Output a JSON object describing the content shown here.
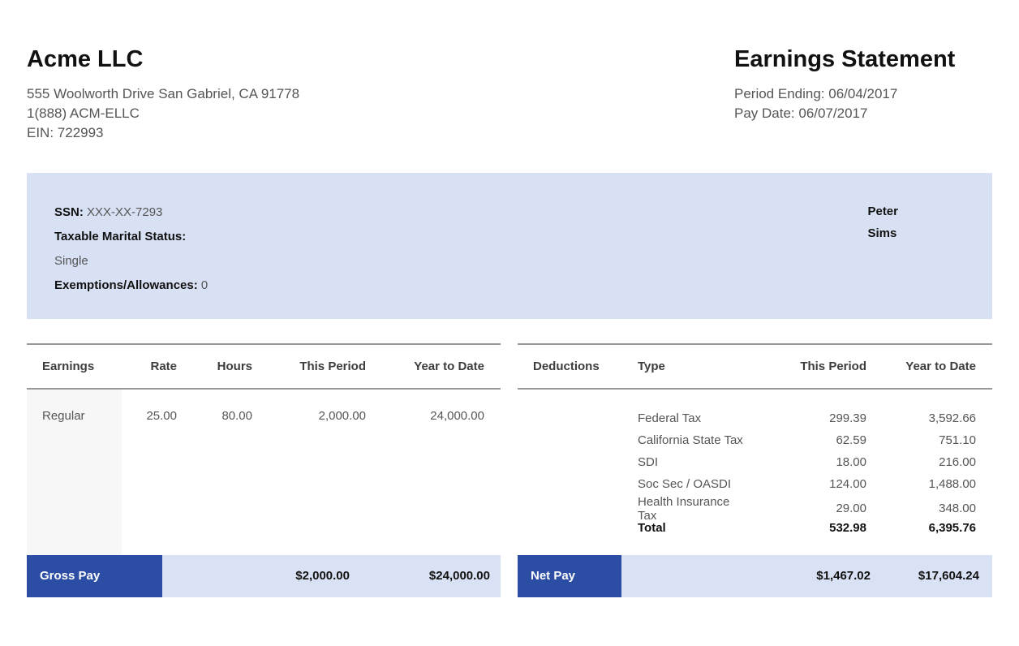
{
  "company": {
    "name": "Acme LLC",
    "address": "555 Woolworth Drive San Gabriel, CA 91778",
    "phone": "1(888) ACM-ELLC",
    "ein": "EIN: 722993"
  },
  "statement": {
    "title": "Earnings Statement",
    "period_ending": "Period Ending: 06/04/2017",
    "pay_date": "Pay Date: 06/07/2017"
  },
  "employee": {
    "ssn_label": "SSN:",
    "ssn_value": "XXX-XX-7293",
    "marital_label": "Taxable Marital Status:",
    "marital_value": "Single",
    "exemptions_label": "Exemptions/Allowances:",
    "exemptions_value": "0",
    "first_name": "Peter",
    "last_name": "Sims"
  },
  "earnings_table": {
    "headers": [
      "Earnings",
      "Rate",
      "Hours",
      "This Period",
      "Year to Date"
    ],
    "rows": [
      {
        "name": "Regular",
        "rate": "25.00",
        "hours": "80.00",
        "this_period": "2,000.00",
        "year_to_date": "24,000.00"
      }
    ]
  },
  "deductions_table": {
    "headers": [
      "Deductions",
      "Type",
      "This Period",
      "Year to Date"
    ],
    "rows": [
      {
        "type": "Federal Tax",
        "this_period": "299.39",
        "year_to_date": "3,592.66"
      },
      {
        "type": "California State Tax",
        "this_period": "62.59",
        "year_to_date": "751.10"
      },
      {
        "type": "SDI",
        "this_period": "18.00",
        "year_to_date": "216.00"
      },
      {
        "type": "Soc Sec / OASDI",
        "this_period": "124.00",
        "year_to_date": "1,488.00"
      },
      {
        "type": "Health Insurance Tax",
        "this_period": "29.00",
        "year_to_date": "348.00"
      }
    ],
    "total": {
      "label": "Total",
      "this_period": "532.98",
      "year_to_date": "6,395.76"
    }
  },
  "gross_pay": {
    "label": "Gross Pay",
    "this_period": "$2,000.00",
    "year_to_date": "$24,000.00"
  },
  "net_pay": {
    "label": "Net Pay",
    "this_period": "$1,467.02",
    "year_to_date": "$17,604.24"
  },
  "colors": {
    "accent_blue": "#2b4da4",
    "light_blue": "#d8e1f4",
    "row_gray": "#f7f7f7"
  }
}
